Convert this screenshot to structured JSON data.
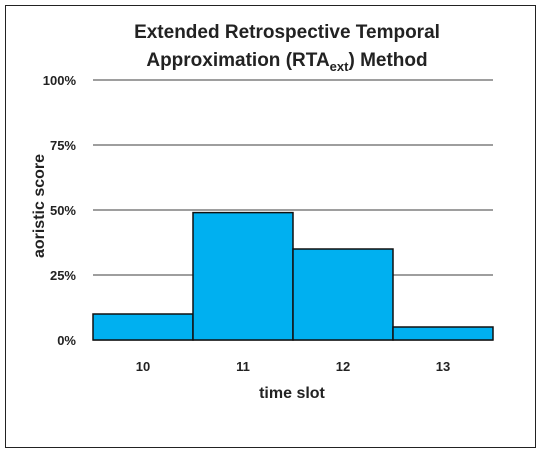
{
  "chart_data": {
    "type": "bar",
    "title_line1": "Extended Retrospective Temporal",
    "title_line2_prefix": "Approximation (RTA",
    "title_subscript": "ext",
    "title_line2_suffix": ") Method",
    "xlabel": "time slot",
    "ylabel": "aoristic score",
    "categories": [
      "10",
      "11",
      "12",
      "13"
    ],
    "values": [
      0.1,
      0.49,
      0.35,
      0.05
    ],
    "ylim": [
      0,
      1
    ],
    "yticks": [
      0,
      0.25,
      0.5,
      0.75,
      1.0
    ],
    "ytick_labels": [
      "0%",
      "25%",
      "50%",
      "75%",
      "100%"
    ],
    "grid": true,
    "legend": "none",
    "colors": {
      "bar_fill": "#00B0F0",
      "bar_stroke": "#111111",
      "grid": "#7f7f7f",
      "text": "#222222"
    }
  }
}
